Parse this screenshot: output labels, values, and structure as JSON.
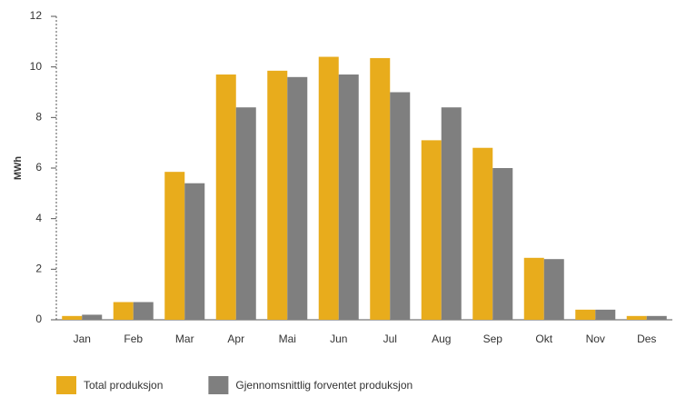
{
  "chart_data": {
    "type": "bar",
    "ylabel": "MWh",
    "categories": [
      "Jan",
      "Feb",
      "Mar",
      "Apr",
      "Mai",
      "Jun",
      "Jul",
      "Aug",
      "Sep",
      "Okt",
      "Nov",
      "Des"
    ],
    "series": [
      {
        "name": "Total produksjon",
        "color": "#e8ac1c",
        "values": [
          0.15,
          0.7,
          5.85,
          9.7,
          9.85,
          10.4,
          10.35,
          7.1,
          6.8,
          2.45,
          0.4,
          0.15
        ]
      },
      {
        "name": "Gjennomsnittlig forventet produksjon",
        "color": "#7f7f7f",
        "values": [
          0.2,
          0.7,
          5.4,
          8.4,
          9.6,
          9.7,
          9.0,
          8.4,
          6.0,
          2.4,
          0.4,
          0.15
        ]
      }
    ],
    "ylim": [
      0,
      12
    ],
    "yticks": [
      0,
      2,
      4,
      6,
      8,
      10,
      12
    ],
    "grid": false,
    "legend": "bottom"
  }
}
